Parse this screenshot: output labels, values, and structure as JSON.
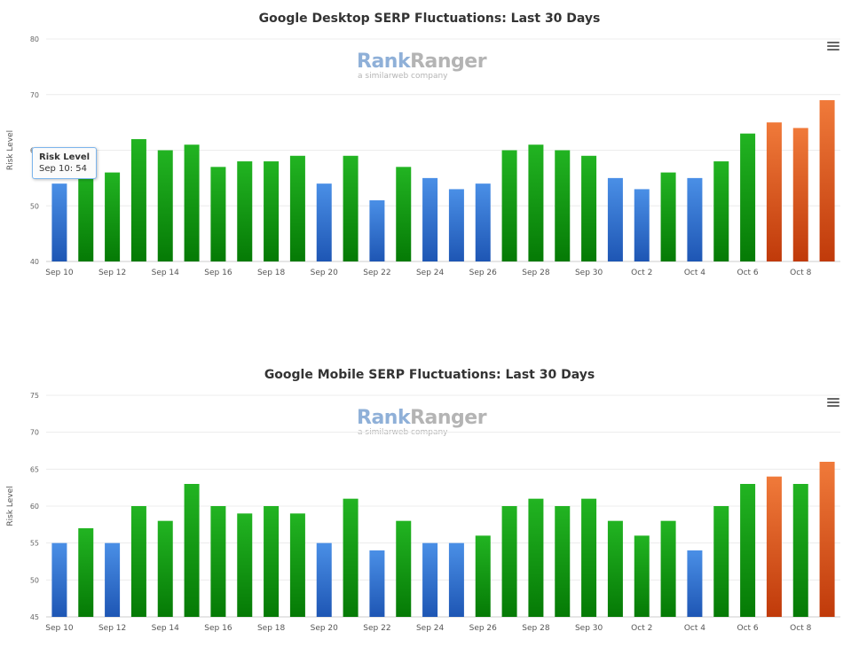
{
  "watermark": {
    "brand_a": "Rank",
    "brand_b": "Ranger",
    "subline": "a similarweb company"
  },
  "colors": {
    "blue": "#3b7fdd",
    "green": "#1aa31a",
    "orange": "#e8652a"
  },
  "chart_data": [
    {
      "type": "bar",
      "title": "Google Desktop SERP Fluctuations: Last 30 Days",
      "ylabel": "Risk Level",
      "xlabel": "",
      "ylim": [
        40,
        80
      ],
      "yticks": [
        "40",
        "50",
        "60",
        "70",
        "80"
      ],
      "categories": [
        "Sep 10",
        "Sep 11",
        "Sep 12",
        "Sep 13",
        "Sep 14",
        "Sep 15",
        "Sep 16",
        "Sep 17",
        "Sep 18",
        "Sep 19",
        "Sep 20",
        "Sep 21",
        "Sep 22",
        "Sep 23",
        "Sep 24",
        "Sep 25",
        "Sep 26",
        "Sep 27",
        "Sep 28",
        "Sep 29",
        "Sep 30",
        "Oct 1",
        "Oct 2",
        "Oct 3",
        "Oct 4",
        "Oct 5",
        "Oct 6",
        "Oct 7",
        "Oct 8",
        "Oct 9"
      ],
      "xtick_labels": [
        "Sep 10",
        "Sep 12",
        "Sep 14",
        "Sep 16",
        "Sep 18",
        "Sep 20",
        "Sep 22",
        "Sep 24",
        "Sep 26",
        "Sep 28",
        "Sep 30",
        "Oct 2",
        "Oct 4",
        "Oct 6",
        "Oct 8"
      ],
      "values": [
        54,
        57,
        56,
        62,
        60,
        61,
        57,
        58,
        58,
        59,
        54,
        59,
        51,
        57,
        55,
        53,
        54,
        60,
        61,
        60,
        59,
        55,
        53,
        56,
        55,
        58,
        63,
        65,
        64,
        69
      ],
      "colors": [
        "blue",
        "green",
        "green",
        "green",
        "green",
        "green",
        "green",
        "green",
        "green",
        "green",
        "blue",
        "green",
        "blue",
        "green",
        "blue",
        "blue",
        "blue",
        "green",
        "green",
        "green",
        "green",
        "blue",
        "blue",
        "green",
        "blue",
        "green",
        "green",
        "orange",
        "orange",
        "orange"
      ],
      "grid": true,
      "legend": "none",
      "tooltip": {
        "title": "Risk Level",
        "label": "Sep 10: 54"
      }
    },
    {
      "type": "bar",
      "title": "Google Mobile SERP Fluctuations: Last 30 Days",
      "ylabel": "Risk Level",
      "xlabel": "",
      "ylim": [
        45,
        75
      ],
      "yticks": [
        "45",
        "50",
        "55",
        "60",
        "65",
        "70",
        "75"
      ],
      "categories": [
        "Sep 10",
        "Sep 11",
        "Sep 12",
        "Sep 13",
        "Sep 14",
        "Sep 15",
        "Sep 16",
        "Sep 17",
        "Sep 18",
        "Sep 19",
        "Sep 20",
        "Sep 21",
        "Sep 22",
        "Sep 23",
        "Sep 24",
        "Sep 25",
        "Sep 26",
        "Sep 27",
        "Sep 28",
        "Sep 29",
        "Sep 30",
        "Oct 1",
        "Oct 2",
        "Oct 3",
        "Oct 4",
        "Oct 5",
        "Oct 6",
        "Oct 7",
        "Oct 8",
        "Oct 9"
      ],
      "xtick_labels": [
        "Sep 10",
        "Sep 12",
        "Sep 14",
        "Sep 16",
        "Sep 18",
        "Sep 20",
        "Sep 22",
        "Sep 24",
        "Sep 26",
        "Sep 28",
        "Sep 30",
        "Oct 2",
        "Oct 4",
        "Oct 6",
        "Oct 8"
      ],
      "values": [
        55,
        57,
        55,
        60,
        58,
        63,
        60,
        59,
        60,
        59,
        55,
        61,
        54,
        58,
        55,
        55,
        56,
        60,
        61,
        60,
        61,
        58,
        56,
        58,
        54,
        60,
        63,
        64,
        63,
        66
      ],
      "colors": [
        "blue",
        "green",
        "blue",
        "green",
        "green",
        "green",
        "green",
        "green",
        "green",
        "green",
        "blue",
        "green",
        "blue",
        "green",
        "blue",
        "blue",
        "green",
        "green",
        "green",
        "green",
        "green",
        "green",
        "green",
        "green",
        "blue",
        "green",
        "green",
        "orange",
        "green",
        "orange"
      ],
      "grid": true,
      "legend": "none"
    }
  ]
}
